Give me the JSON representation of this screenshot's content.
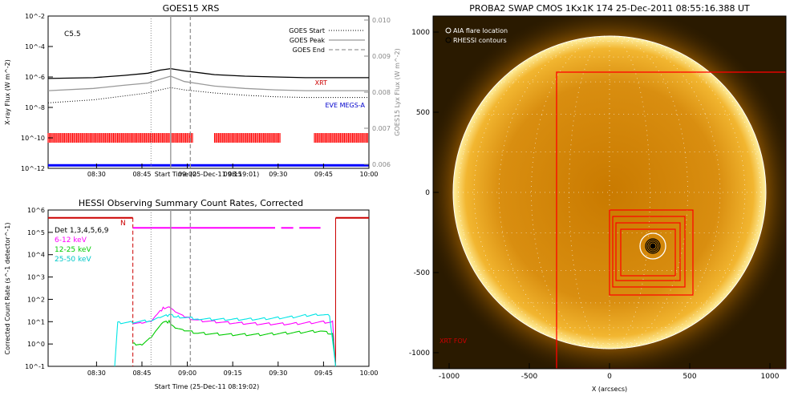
{
  "chart_data": [
    {
      "type": "line",
      "title": "GOES15 XRS",
      "xlabel": "Start Time (25-Dec-11 08:19:01)",
      "ylabel": "X-ray Flux (W m^-2)",
      "ylabel_right": "GOES15 Lyx Flux (W m^-2)",
      "x_ticks": [
        "08:30",
        "08:45",
        "09:00",
        "09:15",
        "09:30",
        "09:45",
        "10:00"
      ],
      "x_range_minutes": [
        -5,
        101
      ],
      "x_tick_minutes": [
        11,
        26,
        41,
        56,
        71,
        86,
        101
      ],
      "ylim_log": [
        -12,
        -2
      ],
      "y_ticks": [
        "10^-2",
        "10^-4",
        "10^-6",
        "10^-8",
        "10^-10",
        "10^-12"
      ],
      "y_ticks_right": [
        "0.010",
        "0.009",
        "0.008",
        "0.007",
        "0.006"
      ],
      "ylim_right": [
        0.006,
        0.01
      ],
      "class_label": "C5.5",
      "legend": [
        "GOES Start",
        "GOES Peak",
        "GOES End"
      ],
      "markers_minutes": {
        "start": 29,
        "peak": 35.5,
        "end": 42
      },
      "series": [
        {
          "name": "",
          "color": "#000000",
          "x": [
            -5,
            10,
            20,
            28,
            32,
            35.5,
            40,
            50,
            60,
            70,
            80,
            90,
            101
          ],
          "log_y": [
            -6.1,
            -6.05,
            -5.9,
            -5.75,
            -5.55,
            -5.45,
            -5.6,
            -5.85,
            -5.95,
            -6.0,
            -6.05,
            -6.05,
            -6.05
          ]
        },
        {
          "name": "",
          "color": "#999999",
          "x": [
            -5,
            10,
            20,
            28,
            32,
            35.5,
            40,
            50,
            60,
            70,
            80,
            90,
            101
          ],
          "log_y": [
            -6.9,
            -6.75,
            -6.55,
            -6.4,
            -6.15,
            -5.95,
            -6.3,
            -6.6,
            -6.75,
            -6.85,
            -6.9,
            -6.9,
            -6.9
          ]
        },
        {
          "name": "",
          "color": "#000000",
          "style": "dotted",
          "x": [
            -5,
            10,
            20,
            28,
            32,
            35.5,
            40,
            50,
            60,
            70,
            80,
            90,
            101
          ],
          "log_y": [
            -7.7,
            -7.5,
            -7.25,
            -7.05,
            -6.85,
            -6.7,
            -6.85,
            -7.05,
            -7.2,
            -7.3,
            -7.35,
            -7.35,
            -7.35
          ]
        }
      ],
      "annotations": [
        {
          "text": "XRT",
          "color": "#cc0000"
        },
        {
          "text": "EVE MEGS-A",
          "color": "#0000cc"
        }
      ],
      "xrt_bars_minutes": [
        [
          -5,
          43
        ],
        [
          50,
          72
        ],
        [
          83,
          101
        ]
      ],
      "eve_bar_minutes": [
        -5,
        101
      ]
    },
    {
      "type": "line",
      "title": "HESSI Observing Summary Count Rates, Corrected",
      "xlabel": "Start Time (25-Dec-11 08:19:02)",
      "ylabel": "Corrected Count Rate (s^-1 detector^-1)",
      "x_ticks": [
        "08:30",
        "08:45",
        "09:00",
        "09:15",
        "09:30",
        "09:45",
        "10:00"
      ],
      "x_range_minutes": [
        -5,
        101
      ],
      "x_tick_minutes": [
        11,
        26,
        41,
        56,
        71,
        86,
        101
      ],
      "ylim_log": [
        -1,
        6
      ],
      "y_ticks": [
        "10^6",
        "10^5",
        "10^4",
        "10^3",
        "10^2",
        "10^1",
        "10^0",
        "10^-1"
      ],
      "legend": [
        {
          "label": "Det 1,3,4,5,6,9",
          "color": "#000000"
        },
        {
          "label": "6-12 keV",
          "color": "#ff00ff"
        },
        {
          "label": "12-25 keV",
          "color": "#00cc00"
        },
        {
          "label": "25-50 keV",
          "color": "#00e5e5"
        }
      ],
      "night_label": "N",
      "night_intervals_minutes": [
        [
          -5,
          23
        ],
        [
          90,
          101
        ]
      ],
      "saa_bar_minutes": [
        [
          23,
          70
        ],
        [
          72,
          76
        ],
        [
          78,
          85
        ]
      ],
      "markers_minutes": {
        "start": 29,
        "peak": 35.5,
        "end": 42
      },
      "series": [
        {
          "name": "6-12 keV",
          "color": "#ff00ff",
          "x": [
            23,
            26,
            29,
            31,
            33,
            35,
            37,
            40,
            45,
            55,
            65,
            75,
            85,
            89,
            90
          ],
          "log_y": [
            0.95,
            0.95,
            1.0,
            1.3,
            1.6,
            1.7,
            1.45,
            1.2,
            1.05,
            0.95,
            0.9,
            0.9,
            0.98,
            0.98,
            -1
          ]
        },
        {
          "name": "12-25 keV",
          "color": "#00cc00",
          "x": [
            23,
            26,
            29,
            31,
            33,
            35,
            37,
            40,
            45,
            55,
            65,
            75,
            85,
            89,
            90
          ],
          "log_y": [
            0.0,
            0.0,
            0.3,
            0.65,
            0.95,
            1.0,
            0.75,
            0.6,
            0.48,
            0.42,
            0.42,
            0.5,
            0.58,
            0.45,
            -1
          ]
        },
        {
          "name": "25-50 keV",
          "color": "#00e5e5",
          "x": [
            17,
            18,
            23,
            29,
            32,
            35,
            38,
            45,
            55,
            65,
            75,
            84,
            88,
            90
          ],
          "log_y": [
            -1,
            0.95,
            0.98,
            1.05,
            1.18,
            1.3,
            1.22,
            1.12,
            1.1,
            1.12,
            1.2,
            1.33,
            1.28,
            -1
          ]
        }
      ]
    },
    {
      "type": "scatter",
      "title": "PROBA2 SWAP CMOS 1Kx1K 174 25-Dec-2011 08:55:16.388 UT",
      "xlabel": "X (arcsecs)",
      "ylabel": "",
      "x_ticks": [
        "-1000",
        "-500",
        "0",
        "500",
        "1000"
      ],
      "y_ticks": [
        "1000",
        "500",
        "0",
        "-500",
        "-1000"
      ],
      "xlim": [
        -1100,
        1100
      ],
      "ylim": [
        -1100,
        1100
      ],
      "legend": [
        "AIA flare location",
        "RHESSI contours"
      ],
      "fov_label": "XRT FOV",
      "xrt_fov_arcsec": [
        -330,
        -1100,
        1100,
        750
      ],
      "boxes_arcsec": [
        [
          0,
          -640,
          520,
          -110
        ],
        [
          20,
          -590,
          470,
          -150
        ],
        [
          40,
          -550,
          440,
          -190
        ],
        [
          70,
          -520,
          410,
          -230
        ]
      ],
      "flare_arcsec": [
        270,
        -335
      ],
      "solar_radius_arcsec": 975
    }
  ]
}
